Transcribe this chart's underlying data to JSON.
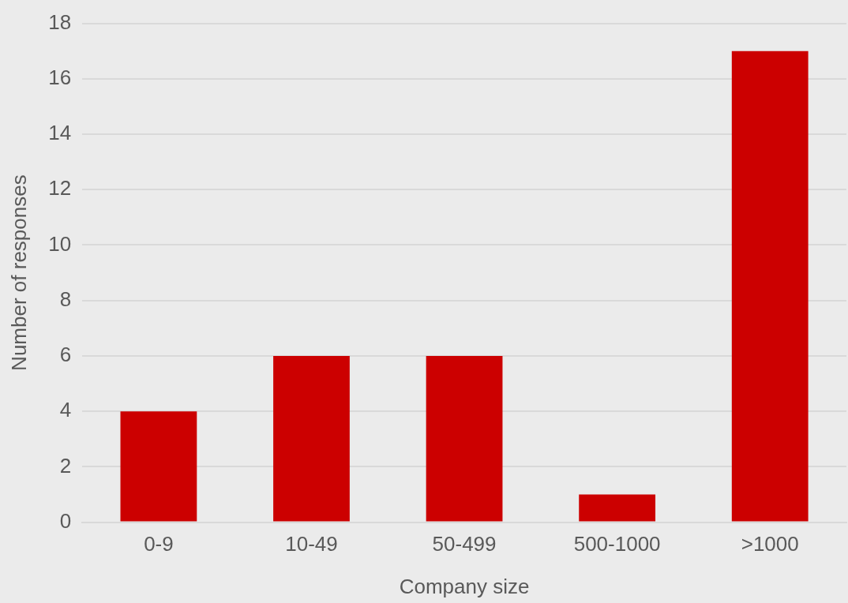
{
  "chart_data": {
    "type": "bar",
    "xlabel": "Company size",
    "ylabel": "Number of responses",
    "categories": [
      "0-9",
      "10-49",
      "50-499",
      "500-1000",
      ">1000"
    ],
    "values": [
      4,
      6,
      6,
      1,
      17
    ],
    "color": "#cc0000",
    "ylim": [
      0,
      18
    ],
    "yticks": [
      0,
      2,
      4,
      6,
      8,
      10,
      12,
      14,
      16,
      18
    ],
    "grid": "y",
    "legend": false
  }
}
